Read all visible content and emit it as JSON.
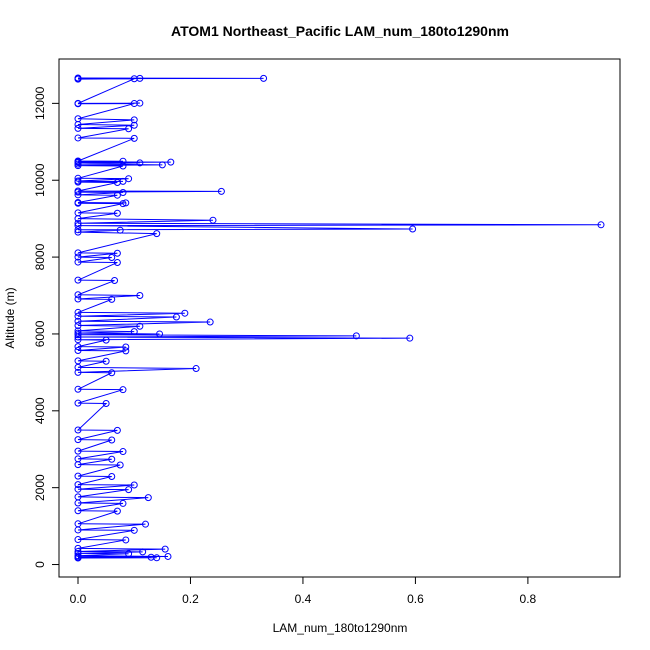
{
  "chart_data": {
    "type": "line",
    "title": "ATOM1 Northeast_Pacific LAM_num_180to1290nm",
    "xlabel": "LAM_num_180to1290nm",
    "ylabel": "Altitude (m)",
    "xlim": [
      0,
      0.93
    ],
    "ylim": [
      170,
      12660
    ],
    "x_ticks": [
      0,
      0.2,
      0.4,
      0.6,
      0.8
    ],
    "x_tick_labels": [
      "0.0",
      "0.2",
      "0.4",
      "0.6",
      "0.8"
    ],
    "y_ticks": [
      0,
      2000,
      4000,
      6000,
      8000,
      10000,
      12000
    ],
    "y_tick_labels": [
      "0",
      "2000",
      "4000",
      "6000",
      "8000",
      "10000",
      "12000"
    ],
    "grid": false,
    "legend": "none",
    "color": "#0000ff",
    "series": [
      {
        "markers": "open-circle",
        "points": [
          [
            0.0,
            12660
          ],
          [
            0.33,
            12650
          ],
          [
            0.0,
            12640
          ],
          [
            0.11,
            12650
          ],
          [
            0.0,
            12630
          ],
          [
            0.1,
            12640
          ],
          [
            0.0,
            12000
          ],
          [
            0.11,
            12005
          ],
          [
            0.0,
            11990
          ],
          [
            0.1,
            11995
          ],
          [
            0.0,
            11600
          ],
          [
            0.1,
            11570
          ],
          [
            0.0,
            11450
          ],
          [
            0.1,
            11430
          ],
          [
            0.0,
            11350
          ],
          [
            0.09,
            11340
          ],
          [
            0.0,
            11100
          ],
          [
            0.1,
            11090
          ],
          [
            0.0,
            10500
          ],
          [
            0.08,
            10495
          ],
          [
            0.0,
            10480
          ],
          [
            0.165,
            10470
          ],
          [
            0.0,
            10460
          ],
          [
            0.11,
            10450
          ],
          [
            0.0,
            10420
          ],
          [
            0.15,
            10400
          ],
          [
            0.0,
            10380
          ],
          [
            0.08,
            10370
          ],
          [
            0.0,
            10050
          ],
          [
            0.09,
            10040
          ],
          [
            0.0,
            9980
          ],
          [
            0.08,
            9970
          ],
          [
            0.0,
            9950
          ],
          [
            0.07,
            9940
          ],
          [
            0.0,
            9720
          ],
          [
            0.255,
            9710
          ],
          [
            0.0,
            9690
          ],
          [
            0.08,
            9680
          ],
          [
            0.0,
            9620
          ],
          [
            0.07,
            9610
          ],
          [
            0.0,
            9420
          ],
          [
            0.085,
            9410
          ],
          [
            0.0,
            9400
          ],
          [
            0.08,
            9390
          ],
          [
            0.0,
            9150
          ],
          [
            0.07,
            9140
          ],
          [
            0.0,
            9000
          ],
          [
            0.24,
            8960
          ],
          [
            0.0,
            8880
          ],
          [
            0.93,
            8840
          ],
          [
            0.0,
            8820
          ],
          [
            0.595,
            8730
          ],
          [
            0.0,
            8710
          ],
          [
            0.075,
            8700
          ],
          [
            0.0,
            8650
          ],
          [
            0.14,
            8610
          ],
          [
            0.0,
            8110
          ],
          [
            0.07,
            8100
          ],
          [
            0.0,
            8000
          ],
          [
            0.06,
            7990
          ],
          [
            0.0,
            7870
          ],
          [
            0.07,
            7860
          ],
          [
            0.0,
            7400
          ],
          [
            0.065,
            7390
          ],
          [
            0.0,
            7020
          ],
          [
            0.11,
            7000
          ],
          [
            0.0,
            6910
          ],
          [
            0.06,
            6900
          ],
          [
            0.0,
            6560
          ],
          [
            0.19,
            6540
          ],
          [
            0.0,
            6460
          ],
          [
            0.175,
            6440
          ],
          [
            0.0,
            6330
          ],
          [
            0.235,
            6310
          ],
          [
            0.0,
            6220
          ],
          [
            0.11,
            6200
          ],
          [
            0.0,
            6080
          ],
          [
            0.1,
            6060
          ],
          [
            0.0,
            6020
          ],
          [
            0.145,
            6000
          ],
          [
            0.0,
            5980
          ],
          [
            0.495,
            5950
          ],
          [
            0.0,
            5920
          ],
          [
            0.59,
            5890
          ],
          [
            0.0,
            5850
          ],
          [
            0.05,
            5840
          ],
          [
            0.0,
            5670
          ],
          [
            0.085,
            5660
          ],
          [
            0.0,
            5570
          ],
          [
            0.085,
            5560
          ],
          [
            0.0,
            5300
          ],
          [
            0.05,
            5290
          ],
          [
            0.0,
            5130
          ],
          [
            0.21,
            5100
          ],
          [
            0.0,
            5000
          ],
          [
            0.06,
            4990
          ],
          [
            0.0,
            4560
          ],
          [
            0.08,
            4550
          ],
          [
            0.0,
            4200
          ],
          [
            0.05,
            4190
          ],
          [
            0.0,
            3500
          ],
          [
            0.07,
            3490
          ],
          [
            0.0,
            3250
          ],
          [
            0.06,
            3240
          ],
          [
            0.0,
            2950
          ],
          [
            0.08,
            2940
          ],
          [
            0.0,
            2750
          ],
          [
            0.06,
            2740
          ],
          [
            0.0,
            2600
          ],
          [
            0.075,
            2590
          ],
          [
            0.0,
            2300
          ],
          [
            0.06,
            2290
          ],
          [
            0.0,
            2080
          ],
          [
            0.1,
            2070
          ],
          [
            0.0,
            1960
          ],
          [
            0.09,
            1950
          ],
          [
            0.0,
            1760
          ],
          [
            0.125,
            1740
          ],
          [
            0.0,
            1600
          ],
          [
            0.08,
            1590
          ],
          [
            0.0,
            1400
          ],
          [
            0.07,
            1390
          ],
          [
            0.0,
            1060
          ],
          [
            0.12,
            1050
          ],
          [
            0.0,
            900
          ],
          [
            0.1,
            890
          ],
          [
            0.0,
            650
          ],
          [
            0.085,
            640
          ],
          [
            0.0,
            420
          ],
          [
            0.155,
            400
          ],
          [
            0.0,
            340
          ],
          [
            0.115,
            330
          ],
          [
            0.0,
            290
          ],
          [
            0.09,
            280
          ],
          [
            0.0,
            230
          ],
          [
            0.16,
            210
          ],
          [
            0.0,
            200
          ],
          [
            0.13,
            190
          ],
          [
            0.0,
            180
          ],
          [
            0.14,
            175
          ],
          [
            0.0,
            170
          ]
        ]
      }
    ]
  }
}
